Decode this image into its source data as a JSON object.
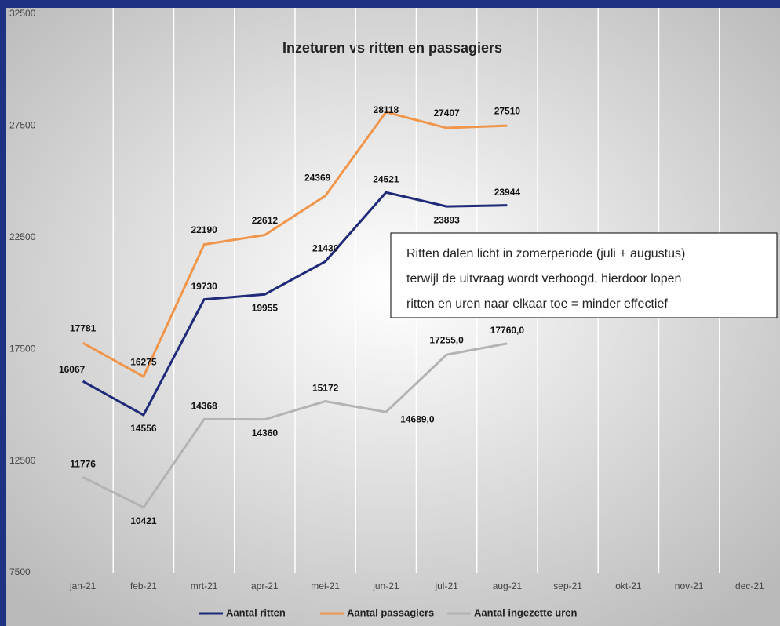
{
  "chart_data": {
    "type": "line",
    "title": "Inzeturen vs ritten en passagiers",
    "categories": [
      "jan-21",
      "feb-21",
      "mrt-21",
      "apr-21",
      "mei-21",
      "jun-21",
      "jul-21",
      "aug-21",
      "sep-21",
      "okt-21",
      "nov-21",
      "dec-21"
    ],
    "series": [
      {
        "name": "Aantal ritten",
        "color": "#1f2a78",
        "values": [
          16067,
          14556,
          19730,
          19955,
          21430,
          24521,
          23893,
          23944,
          null,
          null,
          null,
          null
        ]
      },
      {
        "name": "Aantal passagiers",
        "color": "#f0954a",
        "values": [
          17781,
          16275,
          22190,
          22612,
          24369,
          28118,
          27407,
          27510,
          null,
          null,
          null,
          null
        ]
      },
      {
        "name": "Aantal ingezette uren",
        "color": "#b3b3b3",
        "values": [
          11776,
          10421,
          14368,
          14360,
          15172,
          14689,
          17255,
          17760,
          null,
          null,
          null,
          null
        ],
        "value_labels": [
          "11776",
          "10421",
          "14368",
          "14360",
          "15172",
          "14689,0",
          "17255,0",
          "17760,0",
          null,
          null,
          null,
          null
        ]
      }
    ],
    "ylim": [
      7500,
      32500
    ],
    "yticks": [
      7500,
      12500,
      17500,
      22500,
      27500,
      32500
    ],
    "legend": "bottom",
    "annotation": [
      "Ritten dalen licht in zomerperiode (juli + augustus)",
      "terwijl de uitvraag wordt verhoogd, hierdoor lopen",
      "ritten en uren naar elkaar toe = minder effectief"
    ]
  }
}
